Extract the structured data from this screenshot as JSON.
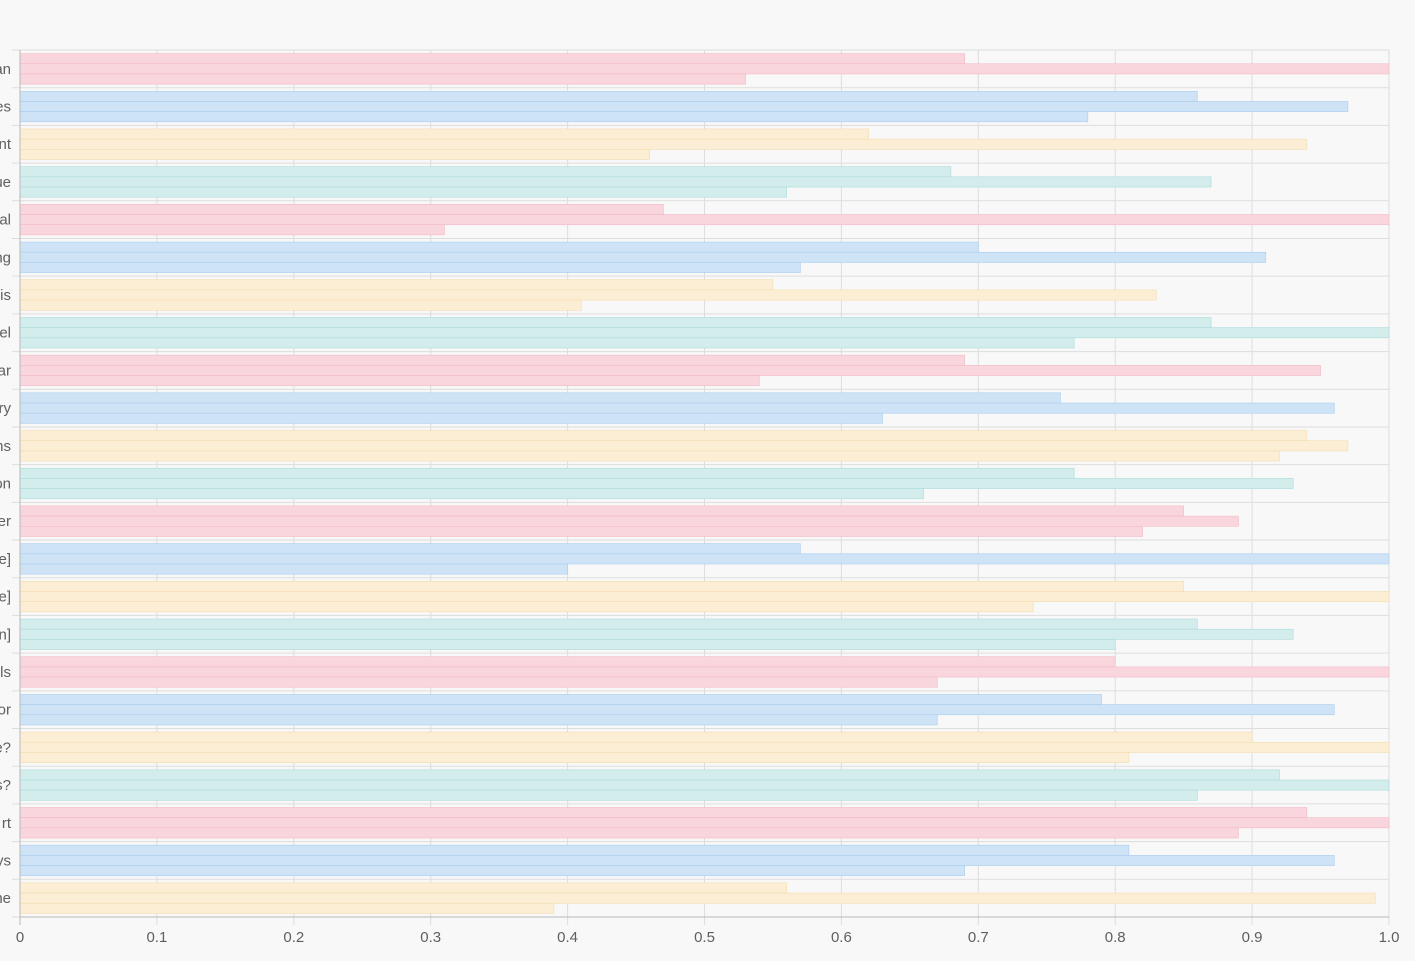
{
  "chart_data": {
    "type": "bar",
    "orientation": "horizontal",
    "title": "",
    "xlabel": "",
    "ylabel": "",
    "xlim": [
      0,
      1.0
    ],
    "x_ticks": [
      "0",
      "0.1",
      "0.2",
      "0.3",
      "0.4",
      "0.5",
      "0.6",
      "0.7",
      "0.8",
      "0.9",
      "1.0"
    ],
    "grid": true,
    "legend": "none",
    "categories": [
      "an",
      "es",
      "nt",
      "ue",
      "al",
      "ng",
      "is",
      "el",
      "ar",
      "ry",
      "ns",
      "on",
      "er",
      "e]",
      "e]",
      "n]",
      "ls",
      "or",
      "e?",
      "s?",
      "rt",
      "ys",
      "ne"
    ],
    "category_colors": [
      "#f9d6dd",
      "#cfe3f6",
      "#fbeed5",
      "#d3ecec",
      "#f9d6dd",
      "#cfe3f6",
      "#fbeed5",
      "#d3ecec",
      "#f9d6dd",
      "#cfe3f6",
      "#fbeed5",
      "#d3ecec",
      "#f9d6dd",
      "#cfe3f6",
      "#fbeed5",
      "#d3ecec",
      "#f9d6dd",
      "#cfe3f6",
      "#fbeed5",
      "#d3ecec",
      "#f9d6dd",
      "#cfe3f6",
      "#fbeed5"
    ],
    "category_stroke_colors": [
      "#f3b9c5",
      "#a9cdef",
      "#f4dcad",
      "#acdcdc",
      "#f3b9c5",
      "#a9cdef",
      "#f4dcad",
      "#acdcdc",
      "#f3b9c5",
      "#a9cdef",
      "#f4dcad",
      "#acdcdc",
      "#f3b9c5",
      "#a9cdef",
      "#f4dcad",
      "#acdcdc",
      "#f3b9c5",
      "#a9cdef",
      "#f4dcad",
      "#acdcdc",
      "#f3b9c5",
      "#a9cdef",
      "#f4dcad"
    ],
    "series": [
      {
        "values": [
          0.69,
          0.86,
          0.62,
          0.68,
          0.47,
          0.7,
          0.55,
          0.87,
          0.69,
          0.76,
          0.94,
          0.77,
          0.85,
          0.57,
          0.85,
          0.86,
          0.8,
          0.79,
          0.9,
          0.92,
          0.94,
          0.81,
          0.56
        ]
      },
      {
        "values": [
          1.0,
          0.97,
          0.94,
          0.87,
          1.0,
          0.91,
          0.83,
          1.0,
          0.95,
          0.96,
          0.97,
          0.93,
          0.89,
          1.0,
          1.0,
          0.93,
          1.0,
          0.96,
          1.0,
          1.0,
          1.0,
          0.96,
          0.99
        ]
      },
      {
        "values": [
          0.53,
          0.78,
          0.46,
          0.56,
          0.31,
          0.57,
          0.41,
          0.77,
          0.54,
          0.63,
          0.92,
          0.66,
          0.82,
          0.4,
          0.74,
          0.8,
          0.67,
          0.67,
          0.81,
          0.86,
          0.89,
          0.69,
          0.39
        ]
      }
    ],
    "background_color": "#f8f8f8",
    "grid_color": "#dddddd",
    "axis_color": "#b8b8b8"
  }
}
